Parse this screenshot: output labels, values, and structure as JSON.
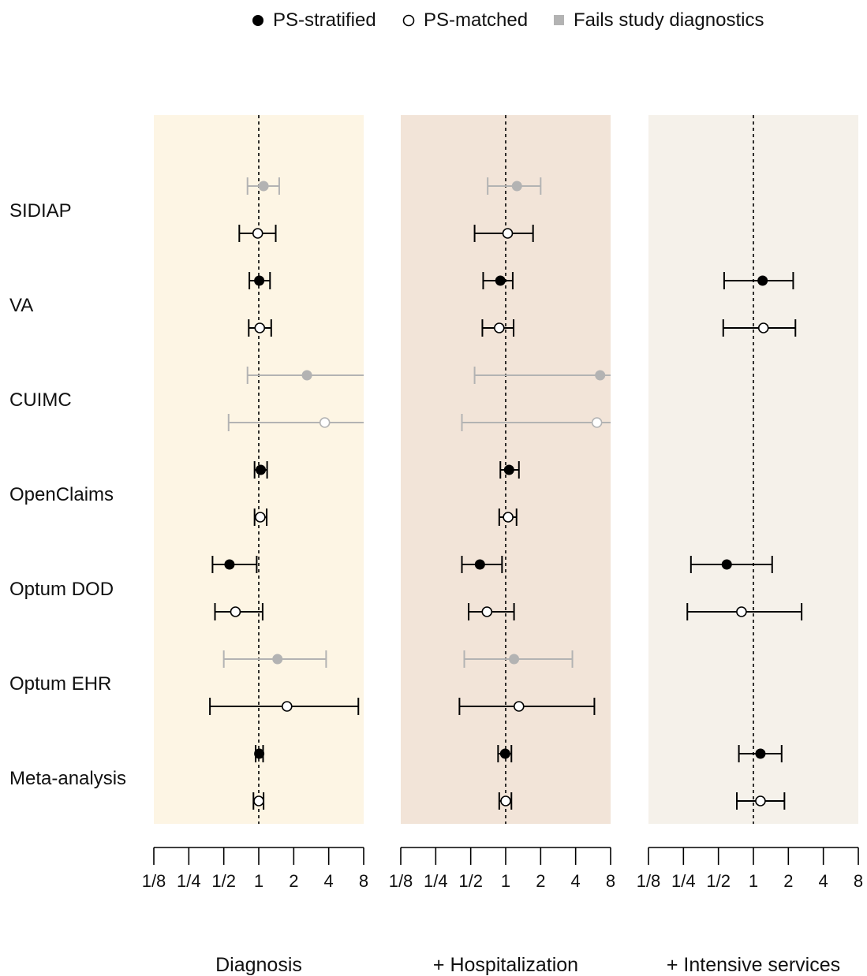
{
  "legend": {
    "position": "top",
    "items": [
      {
        "label": "PS-stratified",
        "marker": "filled-circle",
        "color": "#000000"
      },
      {
        "label": "PS-matched",
        "marker": "open-circle",
        "color": "#000000"
      },
      {
        "label": "Fails study diagnostics",
        "marker": "square",
        "color": "#b3b3b3"
      }
    ]
  },
  "chart_data": {
    "type": "scatter",
    "subtype": "forest-plot",
    "x_scale": "log2",
    "xlim": [
      0.125,
      8
    ],
    "x_ticks": [
      "1/8",
      "1/4",
      "1/2",
      "1",
      "2",
      "4",
      "8"
    ],
    "x_tick_values": [
      0.125,
      0.25,
      0.5,
      1,
      2,
      4,
      8
    ],
    "reference_line": 1,
    "databases": [
      "SIDIAP",
      "VA",
      "CUIMC",
      "OpenClaims",
      "Optum DOD",
      "Optum EHR",
      "Meta-analysis"
    ],
    "colors": {
      "pass": "#000000",
      "fail": "#b3b3b3"
    },
    "panels": [
      {
        "label": "Diagnosis",
        "background": "#fdf5e4",
        "estimates": [
          {
            "database": "SIDIAP",
            "method": "PS-stratified",
            "hr": 1.1,
            "lower": 0.8,
            "upper": 1.5,
            "fails": true
          },
          {
            "database": "SIDIAP",
            "method": "PS-matched",
            "hr": 0.98,
            "lower": 0.68,
            "upper": 1.4,
            "fails": false
          },
          {
            "database": "VA",
            "method": "PS-stratified",
            "hr": 1.01,
            "lower": 0.83,
            "upper": 1.25,
            "fails": false
          },
          {
            "database": "VA",
            "method": "PS-matched",
            "hr": 1.02,
            "lower": 0.82,
            "upper": 1.28,
            "fails": false
          },
          {
            "database": "CUIMC",
            "method": "PS-stratified",
            "hr": 2.6,
            "lower": 0.8,
            "upper": 8,
            "fails": true
          },
          {
            "database": "CUIMC",
            "method": "PS-matched",
            "hr": 3.7,
            "lower": 0.55,
            "upper": 8,
            "fails": true
          },
          {
            "database": "OpenClaims",
            "method": "PS-stratified",
            "hr": 1.04,
            "lower": 0.92,
            "upper": 1.18,
            "fails": false
          },
          {
            "database": "OpenClaims",
            "method": "PS-matched",
            "hr": 1.03,
            "lower": 0.92,
            "upper": 1.17,
            "fails": false
          },
          {
            "database": "Optum DOD",
            "method": "PS-stratified",
            "hr": 0.56,
            "lower": 0.4,
            "upper": 0.96,
            "fails": false
          },
          {
            "database": "Optum DOD",
            "method": "PS-matched",
            "hr": 0.63,
            "lower": 0.42,
            "upper": 1.08,
            "fails": false
          },
          {
            "database": "Optum EHR",
            "method": "PS-stratified",
            "hr": 1.45,
            "lower": 0.5,
            "upper": 3.8,
            "fails": true
          },
          {
            "database": "Optum EHR",
            "method": "PS-matched",
            "hr": 1.75,
            "lower": 0.38,
            "upper": 7.2,
            "fails": false
          },
          {
            "database": "Meta-analysis",
            "method": "PS-stratified",
            "hr": 1.01,
            "lower": 0.94,
            "upper": 1.09,
            "fails": false
          },
          {
            "database": "Meta-analysis",
            "method": "PS-matched",
            "hr": 1.0,
            "lower": 0.9,
            "upper": 1.1,
            "fails": false
          }
        ]
      },
      {
        "label": "+ Hospitalization",
        "background": "#f2e4d8",
        "estimates": [
          {
            "database": "SIDIAP",
            "method": "PS-stratified",
            "hr": 1.25,
            "lower": 0.7,
            "upper": 2.0,
            "fails": true
          },
          {
            "database": "SIDIAP",
            "method": "PS-matched",
            "hr": 1.04,
            "lower": 0.54,
            "upper": 1.72,
            "fails": false
          },
          {
            "database": "VA",
            "method": "PS-stratified",
            "hr": 0.9,
            "lower": 0.64,
            "upper": 1.15,
            "fails": false
          },
          {
            "database": "VA",
            "method": "PS-matched",
            "hr": 0.88,
            "lower": 0.63,
            "upper": 1.17,
            "fails": false
          },
          {
            "database": "CUIMC",
            "method": "PS-stratified",
            "hr": 6.5,
            "lower": 0.54,
            "upper": 8,
            "fails": true
          },
          {
            "database": "CUIMC",
            "method": "PS-matched",
            "hr": 6.1,
            "lower": 0.42,
            "upper": 8,
            "fails": true
          },
          {
            "database": "OpenClaims",
            "method": "PS-stratified",
            "hr": 1.07,
            "lower": 0.9,
            "upper": 1.3,
            "fails": false
          },
          {
            "database": "OpenClaims",
            "method": "PS-matched",
            "hr": 1.05,
            "lower": 0.88,
            "upper": 1.24,
            "fails": false
          },
          {
            "database": "Optum DOD",
            "method": "PS-stratified",
            "hr": 0.6,
            "lower": 0.42,
            "upper": 0.93,
            "fails": false
          },
          {
            "database": "Optum DOD",
            "method": "PS-matched",
            "hr": 0.69,
            "lower": 0.48,
            "upper": 1.18,
            "fails": false
          },
          {
            "database": "Optum EHR",
            "method": "PS-stratified",
            "hr": 1.18,
            "lower": 0.44,
            "upper": 3.75,
            "fails": true
          },
          {
            "database": "Optum EHR",
            "method": "PS-matched",
            "hr": 1.3,
            "lower": 0.4,
            "upper": 5.8,
            "fails": false
          },
          {
            "database": "Meta-analysis",
            "method": "PS-stratified",
            "hr": 0.99,
            "lower": 0.86,
            "upper": 1.12,
            "fails": false
          },
          {
            "database": "Meta-analysis",
            "method": "PS-matched",
            "hr": 1.0,
            "lower": 0.88,
            "upper": 1.12,
            "fails": false
          }
        ]
      },
      {
        "label": "+ Intensive services",
        "background": "#f5f1ea",
        "estimates": [
          {
            "database": "VA",
            "method": "PS-stratified",
            "hr": 1.2,
            "lower": 0.56,
            "upper": 2.2,
            "fails": false
          },
          {
            "database": "VA",
            "method": "PS-matched",
            "hr": 1.22,
            "lower": 0.55,
            "upper": 2.3,
            "fails": false
          },
          {
            "database": "Optum DOD",
            "method": "PS-stratified",
            "hr": 0.59,
            "lower": 0.29,
            "upper": 1.45,
            "fails": false
          },
          {
            "database": "Optum DOD",
            "method": "PS-matched",
            "hr": 0.79,
            "lower": 0.27,
            "upper": 2.6,
            "fails": false
          },
          {
            "database": "Meta-analysis",
            "method": "PS-stratified",
            "hr": 1.15,
            "lower": 0.75,
            "upper": 1.75,
            "fails": false
          },
          {
            "database": "Meta-analysis",
            "method": "PS-matched",
            "hr": 1.15,
            "lower": 0.72,
            "upper": 1.85,
            "fails": false
          }
        ]
      }
    ]
  }
}
